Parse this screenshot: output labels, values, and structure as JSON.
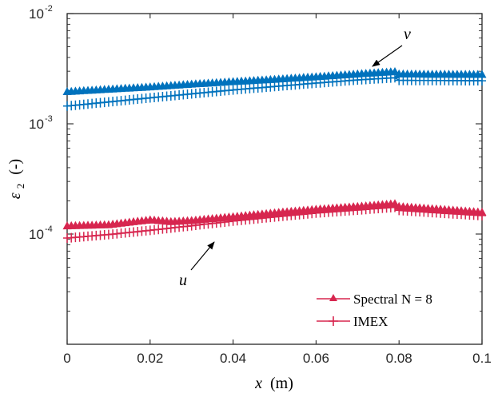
{
  "chart_data": {
    "type": "line",
    "title": "",
    "xlabel": "x (m)",
    "xlabel_var": "x",
    "xlabel_unit": "(m)",
    "ylabel": "ε2 (-)",
    "ylabel_sym": "ε",
    "ylabel_sub": "2",
    "ylabel_unit": "(-)",
    "xlim": [
      0,
      0.1
    ],
    "ylim": [
      1e-05,
      0.01
    ],
    "yscale": "log",
    "grid": false,
    "xticks": [
      {
        "value": 0,
        "label": "0"
      },
      {
        "value": 0.02,
        "label": "0.02"
      },
      {
        "value": 0.04,
        "label": "0.04"
      },
      {
        "value": 0.06,
        "label": "0.06"
      },
      {
        "value": 0.08,
        "label": "0.08"
      },
      {
        "value": 0.1,
        "label": "0.1"
      }
    ],
    "yticks": [
      {
        "value": 0.01,
        "base": "10",
        "exp": "-2"
      },
      {
        "value": 0.001,
        "base": "10",
        "exp": "-3"
      },
      {
        "value": 0.0001,
        "base": "10",
        "exp": "-4"
      }
    ],
    "legend": {
      "placement": "bottom-right",
      "entries": [
        {
          "label": "Spectral N = 8",
          "marker": "triangle"
        },
        {
          "label": "IMEX",
          "marker": "plus"
        }
      ]
    },
    "colors": {
      "v": "#0072BD",
      "u": "#D7264F",
      "axis": "#262626"
    },
    "series": [
      {
        "name": "v (Spectral N = 8)",
        "variable": "v",
        "method": "spectral",
        "marker": "triangle",
        "x": [
          0,
          0.01,
          0.02,
          0.03,
          0.04,
          0.05,
          0.06,
          0.07,
          0.079,
          0.08,
          0.09,
          0.1
        ],
        "y": [
          0.00195,
          0.00205,
          0.00215,
          0.00228,
          0.0024,
          0.00252,
          0.00266,
          0.00282,
          0.00296,
          0.00282,
          0.0028,
          0.00279
        ]
      },
      {
        "name": "v (IMEX)",
        "variable": "v",
        "method": "imex",
        "marker": "plus",
        "x": [
          0,
          0.01,
          0.02,
          0.03,
          0.04,
          0.05,
          0.06,
          0.07,
          0.079,
          0.08,
          0.09,
          0.1
        ],
        "y": [
          0.00145,
          0.00158,
          0.00172,
          0.00187,
          0.00203,
          0.00218,
          0.00234,
          0.0025,
          0.00262,
          0.00248,
          0.00247,
          0.00246
        ]
      },
      {
        "name": "u (Spectral N = 8)",
        "variable": "u",
        "method": "spectral",
        "marker": "triangle",
        "x": [
          0,
          0.01,
          0.02,
          0.025,
          0.03,
          0.04,
          0.05,
          0.06,
          0.07,
          0.079,
          0.08,
          0.09,
          0.1
        ],
        "y": [
          0.000118,
          0.000121,
          0.000134,
          0.000129,
          0.000132,
          0.000143,
          0.000155,
          0.000167,
          0.000177,
          0.000188,
          0.000177,
          0.000167,
          0.000157
        ]
      },
      {
        "name": "u (IMEX)",
        "variable": "u",
        "method": "imex",
        "marker": "plus",
        "x": [
          0,
          0.01,
          0.02,
          0.03,
          0.04,
          0.05,
          0.06,
          0.07,
          0.079,
          0.08,
          0.09,
          0.1
        ],
        "y": [
          9.2e-05,
          9.9e-05,
          0.000108,
          0.000119,
          0.000131,
          0.000143,
          0.000155,
          0.000165,
          0.000175,
          0.000164,
          0.000155,
          0.000147
        ]
      }
    ],
    "annotations": [
      {
        "text": "v",
        "target": "v curve",
        "arrow": true
      },
      {
        "text": "u",
        "target": "u curve",
        "arrow": true
      }
    ]
  }
}
